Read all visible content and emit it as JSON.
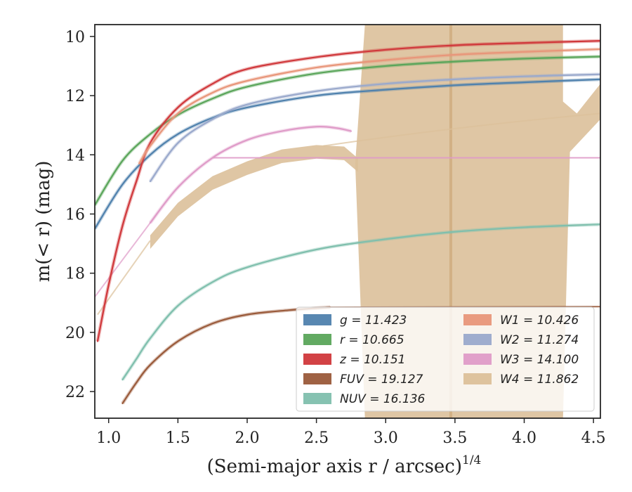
{
  "chart_data": {
    "type": "line",
    "xlabel": "(Semi-major axis r / arcsec)",
    "xlabel_exponent": "1/4",
    "ylabel": "m(< r) (mag)",
    "xlim": [
      0.9,
      4.55
    ],
    "ylim": [
      22.9,
      9.6
    ],
    "y_inverted": true,
    "x_ticks": [
      "1.0",
      "1.5",
      "2.0",
      "2.5",
      "3.0",
      "3.5",
      "4.0",
      "4.5"
    ],
    "y_ticks": [
      "10",
      "12",
      "14",
      "16",
      "18",
      "20",
      "22"
    ],
    "grid": false,
    "legend": {
      "placement": "lower-right",
      "columns": 2
    },
    "series": [
      {
        "name": "g = 11.423",
        "color": "#4f81ad",
        "x": [
          0.9,
          1.1,
          1.3,
          1.5,
          1.75,
          2.0,
          2.5,
          3.0,
          3.5,
          4.0,
          4.55
        ],
        "y": [
          16.5,
          15.0,
          14.0,
          13.3,
          12.75,
          12.4,
          12.0,
          11.8,
          11.65,
          11.55,
          11.45
        ]
      },
      {
        "name": "r = 10.665",
        "color": "#5aa55a",
        "x": [
          0.9,
          1.1,
          1.3,
          1.5,
          1.75,
          2.0,
          2.5,
          3.0,
          3.5,
          4.0,
          4.55
        ],
        "y": [
          15.7,
          14.2,
          13.3,
          12.65,
          12.1,
          11.7,
          11.25,
          11.0,
          10.85,
          10.75,
          10.68
        ]
      },
      {
        "name": "z = 10.151",
        "color": "#d0383b",
        "x": [
          0.92,
          1.0,
          1.1,
          1.2,
          1.3,
          1.5,
          1.75,
          2.0,
          2.5,
          3.0,
          3.5,
          4.0,
          4.55
        ],
        "y": [
          20.3,
          18.4,
          16.4,
          14.9,
          13.6,
          12.4,
          11.6,
          11.1,
          10.7,
          10.45,
          10.3,
          10.22,
          10.15
        ]
      },
      {
        "name": "FUV = 19.127",
        "color": "#9a5a3a",
        "x": [
          1.1,
          1.2,
          1.3,
          1.5,
          1.75,
          2.0,
          2.3,
          2.6
        ],
        "y": [
          22.4,
          21.7,
          21.1,
          20.3,
          19.7,
          19.4,
          19.25,
          19.15
        ]
      },
      {
        "name": "NUV = 16.136",
        "color": "#7fbfad",
        "x": [
          1.1,
          1.2,
          1.3,
          1.5,
          1.75,
          2.0,
          2.5,
          3.0,
          3.5,
          4.0,
          4.55
        ],
        "y": [
          21.6,
          20.9,
          20.2,
          19.1,
          18.3,
          17.8,
          17.2,
          16.85,
          16.6,
          16.45,
          16.35
        ]
      },
      {
        "name": "W1 = 10.426",
        "color": "#e8967a",
        "x": [
          1.22,
          1.3,
          1.5,
          1.75,
          2.0,
          2.5,
          3.0,
          3.5,
          4.0,
          4.55
        ],
        "y": [
          14.3,
          13.7,
          12.6,
          11.9,
          11.5,
          11.05,
          10.8,
          10.62,
          10.52,
          10.43
        ]
      },
      {
        "name": "W2 = 11.274",
        "color": "#9aa9cc",
        "x": [
          1.3,
          1.5,
          1.75,
          2.0,
          2.5,
          3.0,
          3.5,
          4.0,
          4.55
        ],
        "y": [
          14.9,
          13.6,
          12.8,
          12.3,
          11.85,
          11.6,
          11.45,
          11.35,
          11.28
        ]
      },
      {
        "name": "W3 = 14.100",
        "color": "#df9bc8",
        "x": [
          1.3,
          1.5,
          1.75,
          2.0,
          2.25,
          2.5,
          2.65,
          2.75
        ],
        "y": [
          16.3,
          15.1,
          14.1,
          13.5,
          13.2,
          13.05,
          13.1,
          13.2
        ]
      },
      {
        "name": "W4 = 11.862",
        "color": "#dcc09a",
        "x": [
          1.3,
          1.5,
          1.75,
          2.0,
          2.25,
          2.5,
          2.7,
          2.8
        ],
        "y": [
          16.9,
          15.8,
          14.9,
          14.4,
          14.0,
          13.85,
          13.9,
          14.3
        ]
      }
    ]
  }
}
